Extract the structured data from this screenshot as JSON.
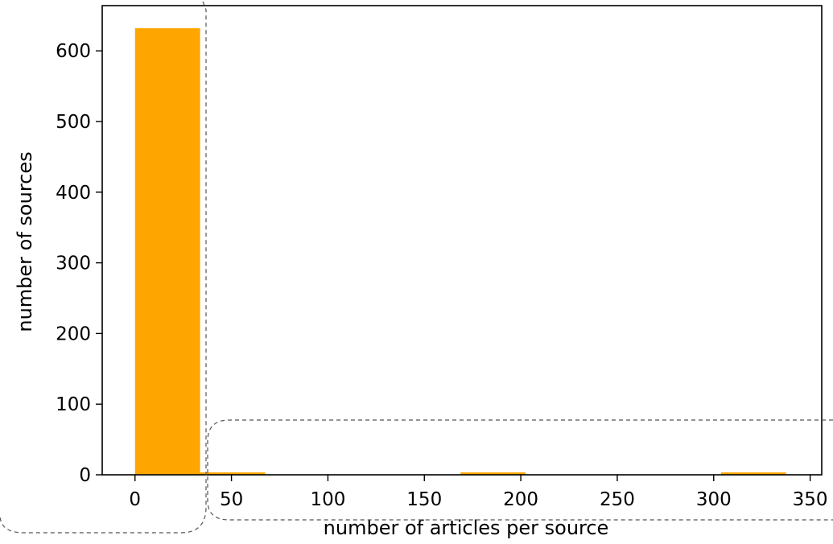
{
  "chart_data": {
    "type": "bar",
    "subtype": "histogram",
    "bins": [
      {
        "x0": 0,
        "x1": 33.75,
        "count": 632
      },
      {
        "x0": 33.75,
        "x1": 67.5,
        "count": 3
      },
      {
        "x0": 67.5,
        "x1": 101.25,
        "count": 0
      },
      {
        "x0": 101.25,
        "x1": 135,
        "count": 0
      },
      {
        "x0": 135,
        "x1": 168.75,
        "count": 0
      },
      {
        "x0": 168.75,
        "x1": 202.5,
        "count": 2
      },
      {
        "x0": 202.5,
        "x1": 236.25,
        "count": 0
      },
      {
        "x0": 236.25,
        "x1": 270,
        "count": 0
      },
      {
        "x0": 270,
        "x1": 303.75,
        "count": 0
      },
      {
        "x0": 303.75,
        "x1": 337.5,
        "count": 2
      }
    ],
    "bar_color": "#ffa500",
    "xlabel": "number of articles per source",
    "ylabel": "number of sources",
    "xlim": [
      -17,
      356
    ],
    "ylim": [
      0,
      664
    ],
    "xticks": [
      0,
      50,
      100,
      150,
      200,
      250,
      300,
      350
    ],
    "yticks": [
      0,
      100,
      200,
      300,
      400,
      500,
      600
    ],
    "grid": false,
    "legend": "none"
  }
}
